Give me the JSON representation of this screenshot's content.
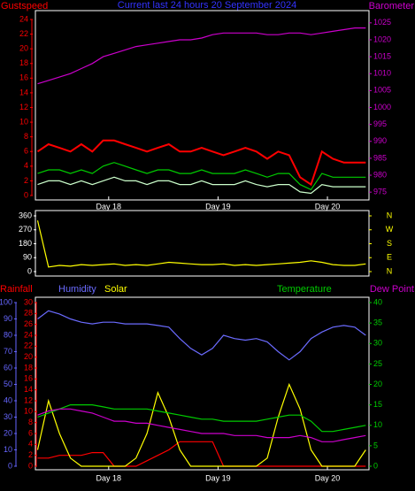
{
  "chart_data": [
    {
      "type": "line",
      "title": "Current last 24 hours 20 September 2024",
      "x": [
        17.35,
        17.45,
        17.55,
        17.65,
        17.75,
        17.85,
        17.95,
        18.05,
        18.15,
        18.25,
        18.35,
        18.45,
        18.55,
        18.65,
        18.75,
        18.85,
        18.95,
        19.05,
        19.15,
        19.25,
        19.35,
        19.45,
        19.55,
        19.65,
        19.75,
        19.85,
        19.95,
        20.05,
        20.15,
        20.25,
        20.35
      ],
      "xlim": [
        17.33,
        20.38
      ],
      "xticks": [
        {
          "value": 18,
          "label": "Day 18"
        },
        {
          "value": 19,
          "label": "Day 19"
        },
        {
          "value": 20,
          "label": "Day 20"
        }
      ],
      "ylim": [
        0,
        24
      ],
      "yticks": [
        0,
        2,
        4,
        6,
        8,
        10,
        12,
        14,
        16,
        18,
        20,
        22,
        24
      ],
      "ycolor": "#ff0000",
      "y2lim": [
        974,
        1026
      ],
      "y2ticks": [
        975,
        980,
        985,
        990,
        995,
        1000,
        1005,
        1010,
        1015,
        1020,
        1025
      ],
      "y2color": "#cc00cc",
      "series": [
        {
          "name": "Gustspeed",
          "color": "#ff0000",
          "values": [
            6,
            7,
            6.5,
            6,
            7,
            6,
            7.5,
            7.5,
            7,
            6.5,
            6,
            6.5,
            7,
            6,
            6,
            6.5,
            6,
            5.5,
            6,
            6.5,
            6,
            5,
            6,
            5.5,
            2.5,
            1.5,
            6,
            5,
            4.5,
            4.5,
            4.5
          ]
        },
        {
          "color": "#00cc00",
          "values": [
            3,
            3.5,
            3.5,
            3,
            3.5,
            3,
            4,
            4.5,
            4,
            3.5,
            3,
            3.5,
            3.5,
            3,
            3,
            3.5,
            3,
            3,
            3,
            3.5,
            3,
            2.5,
            3,
            3,
            1.5,
            0.8,
            3,
            2.5,
            2.5,
            2.5,
            2.5
          ]
        },
        {
          "color": "#ccffcc",
          "values": [
            1.5,
            2,
            2,
            1.5,
            2,
            1.5,
            2,
            2.5,
            2,
            2,
            1.5,
            2,
            2,
            1.5,
            1.5,
            2,
            1.5,
            1.5,
            1.5,
            2,
            1.5,
            1.2,
            1.5,
            1.5,
            0.5,
            0.3,
            1.5,
            1.2,
            1.2,
            1.2,
            1.2
          ]
        },
        {
          "name": "Barometer",
          "color": "#cc00cc",
          "axis": "y2",
          "values": [
            1007,
            1008,
            1009,
            1010,
            1011.5,
            1013,
            1015,
            1016,
            1017,
            1018,
            1018.5,
            1019,
            1019.5,
            1020,
            1020,
            1020.5,
            1021.5,
            1022,
            1022,
            1022,
            1022,
            1021.5,
            1021.5,
            1022,
            1022,
            1021.5,
            1022,
            1022.5,
            1023,
            1023.5,
            1023.5
          ]
        }
      ]
    },
    {
      "type": "line",
      "x": [
        17.35,
        17.45,
        17.55,
        17.65,
        17.75,
        17.85,
        17.95,
        18.05,
        18.15,
        18.25,
        18.35,
        18.45,
        18.55,
        18.65,
        18.75,
        18.85,
        18.95,
        19.05,
        19.15,
        19.25,
        19.35,
        19.45,
        19.55,
        19.65,
        19.75,
        19.85,
        19.95,
        20.05,
        20.15,
        20.25,
        20.35
      ],
      "xlim": [
        17.33,
        20.38
      ],
      "ylim": [
        0,
        360
      ],
      "yticks": [
        0,
        90,
        180,
        270,
        360
      ],
      "ycolor": "#ffffff",
      "y2lim": [
        0,
        360
      ],
      "y2ticks": [
        {
          "value": 360,
          "label": "N"
        },
        {
          "value": 270,
          "label": "W"
        },
        {
          "value": 180,
          "label": "S"
        },
        {
          "value": 90,
          "label": "E"
        },
        {
          "value": 0,
          "label": "N"
        }
      ],
      "y2color": "#ffff00",
      "series": [
        {
          "color": "#ffff00",
          "values": [
            330,
            30,
            40,
            35,
            45,
            40,
            45,
            50,
            40,
            45,
            40,
            50,
            60,
            55,
            50,
            45,
            45,
            50,
            40,
            45,
            40,
            45,
            50,
            55,
            60,
            70,
            60,
            45,
            40,
            40,
            50
          ]
        }
      ]
    },
    {
      "type": "line",
      "x": [
        17.35,
        17.45,
        17.55,
        17.65,
        17.75,
        17.85,
        17.95,
        18.05,
        18.15,
        18.25,
        18.35,
        18.45,
        18.55,
        18.65,
        18.75,
        18.85,
        18.95,
        19.05,
        19.15,
        19.25,
        19.35,
        19.45,
        19.55,
        19.65,
        19.75,
        19.85,
        19.95,
        20.05,
        20.15,
        20.25,
        20.35
      ],
      "xlim": [
        17.33,
        20.38
      ],
      "xticks": [
        {
          "value": 18,
          "label": "Day 18"
        },
        {
          "value": 19,
          "label": "Day 19"
        },
        {
          "value": 20,
          "label": "Day 20"
        }
      ],
      "ylim": [
        0,
        100
      ],
      "yticks": [
        0,
        10,
        20,
        30,
        40,
        50,
        60,
        70,
        80,
        90,
        100
      ],
      "ycolor": "#6666ff",
      "y3lim": [
        0,
        30
      ],
      "y3ticks": [
        0,
        2,
        4,
        6,
        8,
        10,
        12,
        14,
        16,
        18,
        20,
        22,
        24,
        26,
        28,
        30
      ],
      "y3color": "#ff0000",
      "y2lim": [
        0,
        40
      ],
      "y2ticks": [
        0,
        5,
        10,
        15,
        20,
        25,
        30,
        35,
        40
      ],
      "y2color": "#00cc00",
      "series": [
        {
          "name": "Rainfall",
          "color": "#ff0000",
          "axis": "y3",
          "values": [
            1.5,
            1.5,
            2,
            2,
            2,
            2.5,
            2.5,
            0,
            0,
            0,
            1,
            2,
            3,
            4.5,
            4.5,
            4.5,
            4.5,
            0,
            0,
            0,
            0,
            0,
            0,
            0,
            0,
            0,
            0,
            0,
            0,
            0,
            0
          ]
        },
        {
          "name": "Humidity",
          "color": "#6b6bff",
          "values": [
            90,
            95,
            93,
            90,
            88,
            87,
            88,
            88,
            87,
            87,
            87,
            86,
            85,
            78,
            72,
            68,
            72,
            80,
            78,
            77,
            78,
            76,
            70,
            65,
            70,
            78,
            82,
            85,
            86,
            85,
            80
          ]
        },
        {
          "name": "Solar",
          "color": "#ffff00",
          "values": [
            10,
            40,
            20,
            5,
            0,
            0,
            0,
            0,
            0,
            5,
            20,
            45,
            30,
            10,
            0,
            0,
            0,
            0,
            0,
            0,
            0,
            5,
            30,
            50,
            35,
            10,
            0,
            0,
            0,
            0,
            10
          ]
        },
        {
          "name": "Temperature",
          "color": "#00cc00",
          "axis": "y2",
          "values": [
            12,
            13,
            14,
            15,
            15,
            15,
            14.5,
            14,
            14,
            14,
            14,
            13.5,
            13,
            12.5,
            12,
            11.5,
            11.5,
            11,
            11,
            11,
            11,
            11.5,
            12,
            12.5,
            12.5,
            11,
            8.5,
            8.5,
            9,
            9.5,
            10
          ]
        },
        {
          "name": "Dew Point",
          "color": "#cc00cc",
          "axis": "y2",
          "values": [
            12.5,
            13.5,
            14,
            14,
            13.5,
            13,
            12,
            11,
            11,
            10.5,
            10.5,
            10,
            9.5,
            9,
            8.5,
            8,
            8,
            8,
            7.5,
            7.5,
            7.5,
            7,
            7,
            7,
            7.5,
            7,
            6,
            6,
            6.5,
            7,
            7.5
          ]
        }
      ]
    }
  ]
}
